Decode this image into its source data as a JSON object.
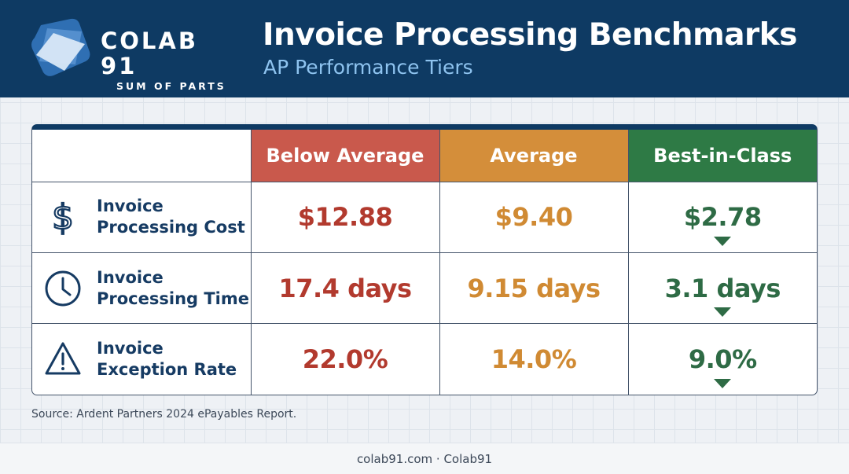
{
  "brand": {
    "name": "COLAB 91",
    "tagline": "SUM OF PARTS"
  },
  "header": {
    "title": "Invoice Processing Benchmarks",
    "subtitle": "AP Performance Tiers"
  },
  "colors": {
    "header_bg": "#0e3a63",
    "below_average": "#c9594c",
    "average": "#d48e3a",
    "best_in_class": "#2e7a45"
  },
  "chart_data": {
    "type": "table",
    "columns": [
      "Below Average",
      "Average",
      "Best-in-Class"
    ],
    "rows": [
      {
        "icon": "dollar-icon",
        "label_line1": "Invoice",
        "label_line2": "Processing Cost",
        "values": [
          "$12.88",
          "$9.40",
          "$2.78"
        ],
        "best_trend": "down-arrow-icon"
      },
      {
        "icon": "clock-icon",
        "label_line1": "Invoice",
        "label_line2": "Processing Time",
        "values": [
          "17.4 days",
          "9.15 days",
          "3.1 days"
        ],
        "best_trend": "down-arrow-icon"
      },
      {
        "icon": "warning-icon",
        "label_line1": "Invoice",
        "label_line2": "Exception Rate",
        "values": [
          "22.0%",
          "14.0%",
          "9.0%"
        ],
        "best_trend": "down-arrow-icon"
      }
    ]
  },
  "source": "Source: Ardent Partners 2024 ePayables Report.",
  "footer": "colab91.com · Colab91"
}
